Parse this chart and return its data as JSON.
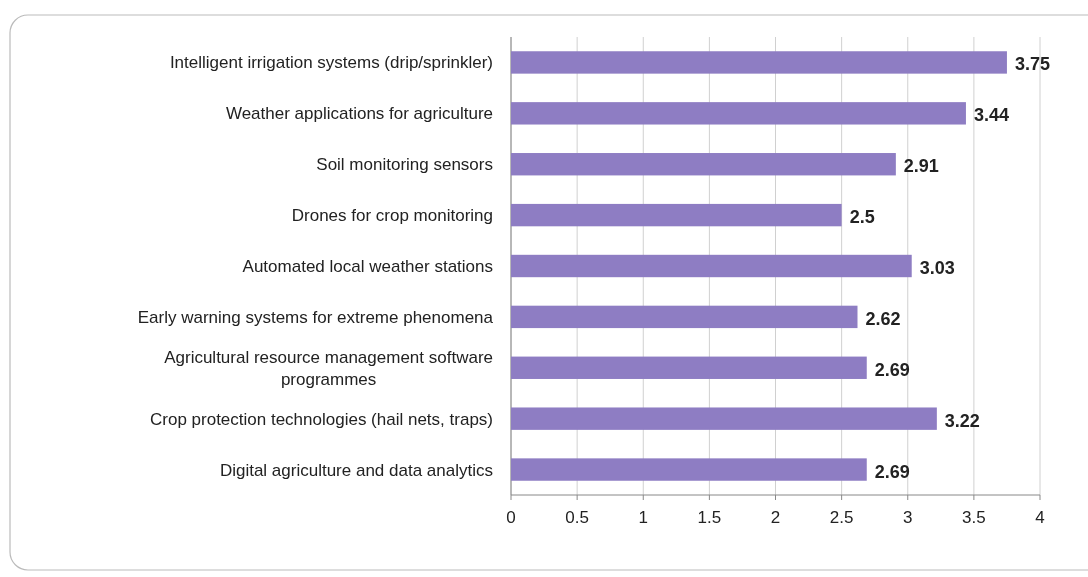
{
  "chart_data": {
    "type": "bar",
    "orientation": "horizontal",
    "categories": [
      "Intelligent irrigation systems (drip/sprinkler)",
      "Weather applications for agriculture",
      "Soil monitoring sensors",
      "Drones for crop monitoring",
      "Automated local weather stations",
      "Early warning systems for extreme phenomena",
      "Agricultural resource management software programmes",
      "Crop protection technologies (hail nets, traps)",
      "Digital agriculture and data analytics"
    ],
    "values": [
      3.75,
      3.44,
      2.91,
      2.5,
      3.03,
      2.62,
      2.69,
      3.22,
      2.69
    ],
    "color": "#8e7dc3",
    "xlim": [
      0,
      4
    ],
    "xticks": [
      0,
      0.5,
      1,
      1.5,
      2,
      2.5,
      3,
      3.5,
      4
    ],
    "grid": "x",
    "data_labels": true
  }
}
